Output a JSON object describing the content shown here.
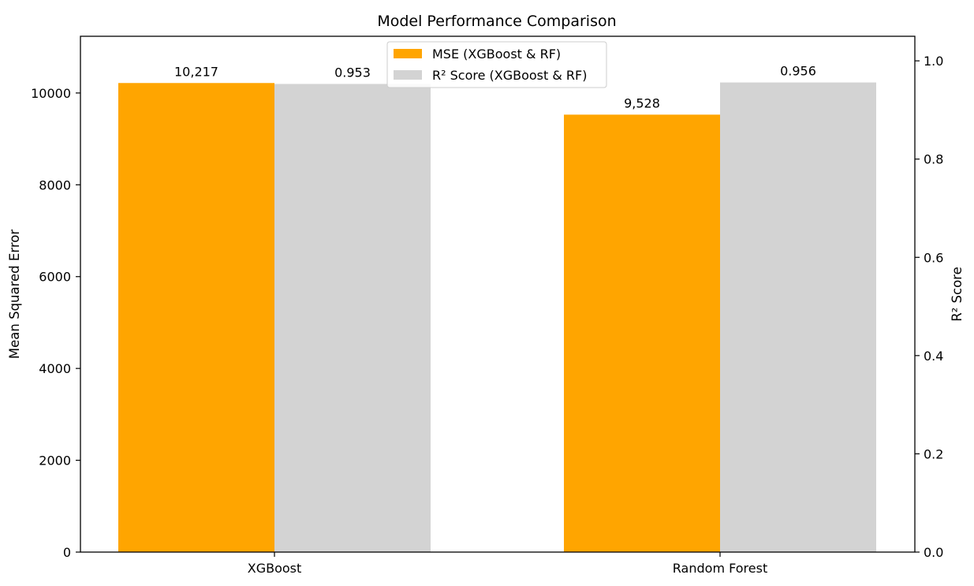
{
  "chart_data": {
    "type": "bar",
    "title": "Model Performance Comparison",
    "categories": [
      "XGBoost",
      "Random Forest"
    ],
    "left_axis": {
      "label": "Mean Squared Error",
      "ylim": [
        0,
        11235
      ],
      "ticks": [
        0,
        2000,
        4000,
        6000,
        8000,
        10000
      ],
      "tick_labels": [
        "0",
        "2000",
        "4000",
        "6000",
        "8000",
        "10000"
      ]
    },
    "right_axis": {
      "label": "R² Score",
      "ylim": [
        0,
        1.05
      ],
      "ticks": [
        0.0,
        0.2,
        0.4,
        0.6,
        0.8,
        1.0
      ],
      "tick_labels": [
        "0.0",
        "0.2",
        "0.4",
        "0.6",
        "0.8",
        "1.0"
      ]
    },
    "series": [
      {
        "name": "MSE (XGBoost & RF)",
        "axis": "left",
        "color": "#ffa500",
        "values": [
          10217,
          9528
        ],
        "value_labels": [
          "10,217",
          "9,528"
        ]
      },
      {
        "name": "R² Score (XGBoost & RF)",
        "axis": "right",
        "color": "#d3d3d3",
        "values": [
          0.953,
          0.956
        ],
        "value_labels": [
          "0.953",
          "0.956"
        ]
      }
    ],
    "grid": false,
    "legend_position": "upper-center"
  }
}
